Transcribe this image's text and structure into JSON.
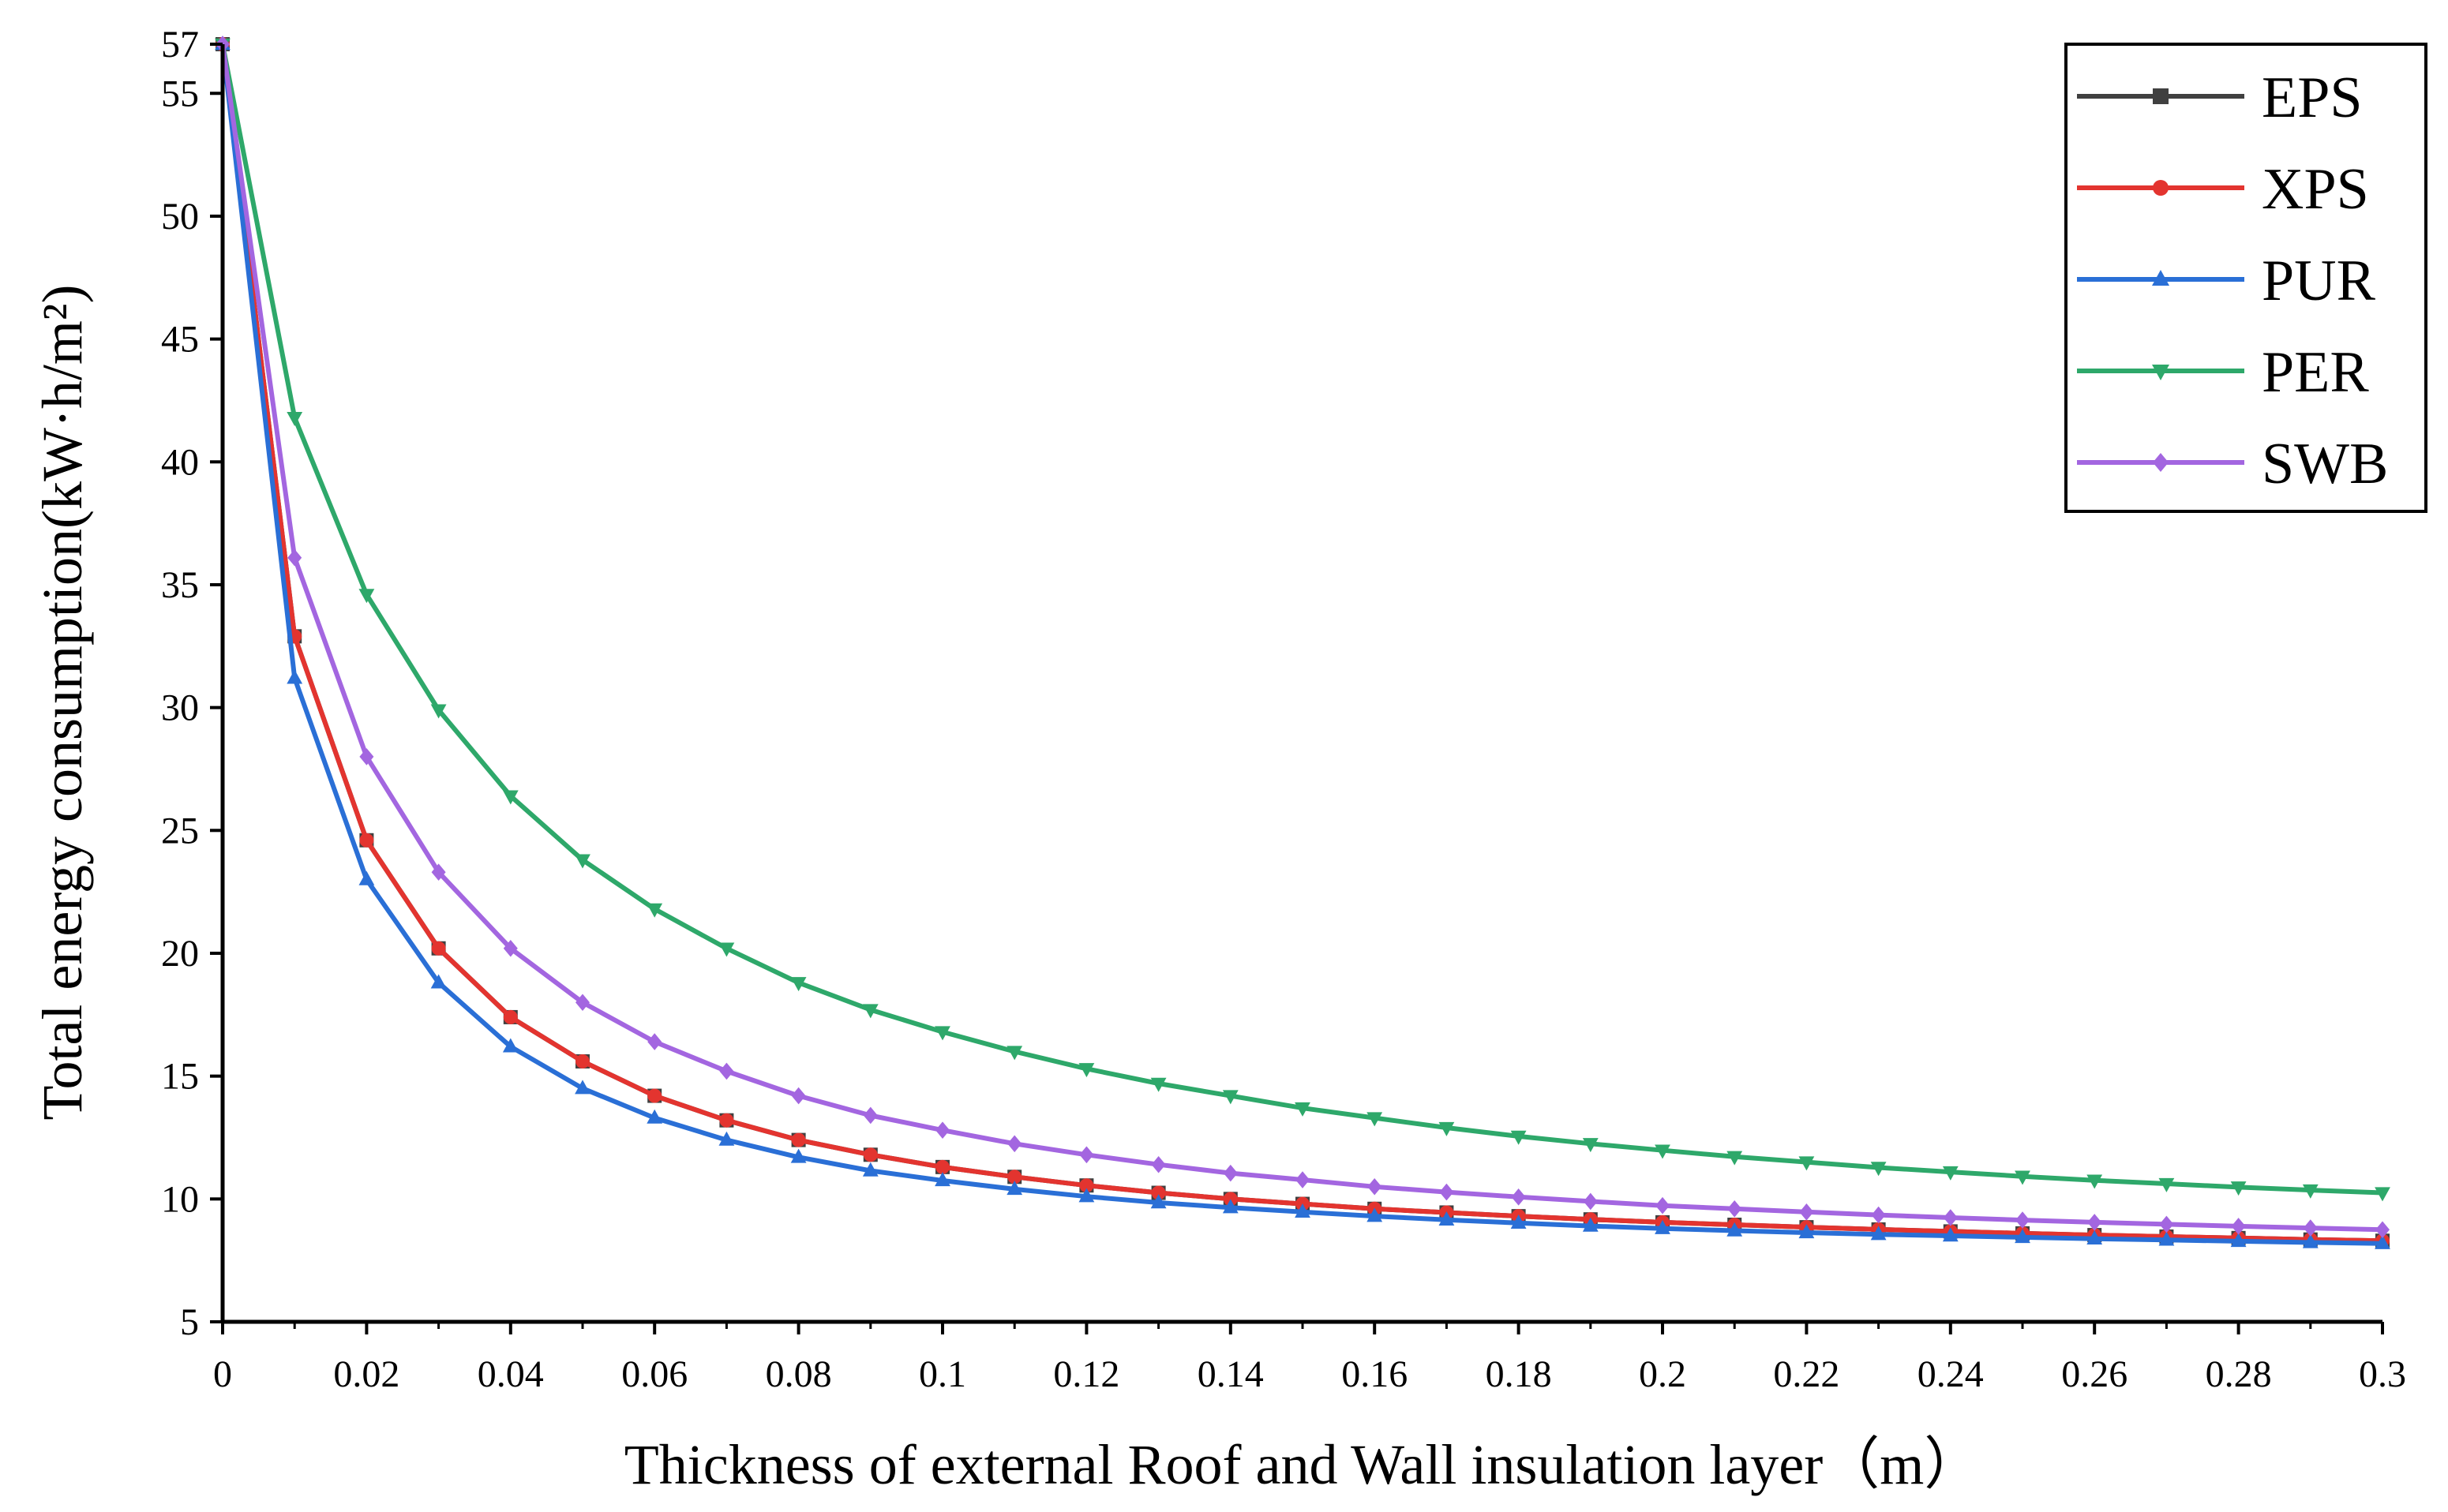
{
  "chart_data": {
    "type": "line",
    "title": "",
    "xlabel": "Thickness of external Roof and Wall insulation layer（m）",
    "ylabel": "Total energy consumption(kW·h/m²)",
    "xlim": [
      0,
      0.3
    ],
    "ylim": [
      5,
      57
    ],
    "grid": false,
    "legend_position": "top-right",
    "x_ticks": [
      0,
      0.02,
      0.04,
      0.06,
      0.08,
      0.1,
      0.12,
      0.14,
      0.16,
      0.18,
      0.2,
      0.22,
      0.24,
      0.26,
      0.28,
      0.3
    ],
    "x_tick_labels": [
      "0",
      "0.02",
      "0.04",
      "0.06",
      "0.08",
      "0.1",
      "0.12",
      "0.14",
      "0.16",
      "0.18",
      "0.2",
      "0.22",
      "0.24",
      "0.26",
      "0.28",
      "0.3"
    ],
    "y_ticks": [
      5,
      10,
      15,
      20,
      25,
      30,
      35,
      40,
      45,
      50,
      55,
      57
    ],
    "y_tick_labels": [
      "5",
      "10",
      "15",
      "20",
      "25",
      "30",
      "35",
      "40",
      "45",
      "50",
      "55",
      "57"
    ],
    "x": [
      0,
      0.01,
      0.02,
      0.03,
      0.04,
      0.05,
      0.06,
      0.07,
      0.08,
      0.09,
      0.1,
      0.11,
      0.12,
      0.13,
      0.14,
      0.15,
      0.16,
      0.17,
      0.18,
      0.19,
      0.2,
      0.21,
      0.22,
      0.23,
      0.24,
      0.25,
      0.26,
      0.27,
      0.28,
      0.29,
      0.3
    ],
    "series": [
      {
        "name": "EPS",
        "color": "#404040",
        "marker": "square",
        "values": [
          57.0,
          32.9,
          24.6,
          20.2,
          17.4,
          15.6,
          14.2,
          13.2,
          12.4,
          11.8,
          11.3,
          10.9,
          10.55,
          10.25,
          10.0,
          9.8,
          9.6,
          9.45,
          9.3,
          9.17,
          9.05,
          8.95,
          8.85,
          8.76,
          8.68,
          8.6,
          8.53,
          8.47,
          8.41,
          8.35,
          8.3
        ]
      },
      {
        "name": "XPS",
        "color": "#e3342f",
        "marker": "circle",
        "values": [
          57.0,
          32.9,
          24.6,
          20.2,
          17.4,
          15.6,
          14.2,
          13.2,
          12.4,
          11.8,
          11.3,
          10.9,
          10.55,
          10.25,
          10.0,
          9.8,
          9.6,
          9.45,
          9.3,
          9.17,
          9.05,
          8.95,
          8.85,
          8.76,
          8.68,
          8.6,
          8.53,
          8.47,
          8.41,
          8.35,
          8.3
        ]
      },
      {
        "name": "PUR",
        "color": "#2a6fd6",
        "marker": "triangle-up",
        "values": [
          57.0,
          31.2,
          23.0,
          18.8,
          16.2,
          14.5,
          13.3,
          12.4,
          11.7,
          11.15,
          10.75,
          10.4,
          10.1,
          9.85,
          9.65,
          9.47,
          9.3,
          9.15,
          9.02,
          8.9,
          8.8,
          8.71,
          8.63,
          8.56,
          8.5,
          8.44,
          8.38,
          8.33,
          8.28,
          8.23,
          8.19
        ]
      },
      {
        "name": "PER",
        "color": "#2ea86a",
        "marker": "triangle-down",
        "values": [
          57.0,
          41.8,
          34.6,
          29.9,
          26.4,
          23.8,
          21.8,
          20.2,
          18.8,
          17.7,
          16.8,
          16.0,
          15.3,
          14.7,
          14.2,
          13.7,
          13.3,
          12.9,
          12.55,
          12.25,
          11.98,
          11.72,
          11.5,
          11.28,
          11.1,
          10.92,
          10.76,
          10.62,
          10.48,
          10.36,
          10.25
        ]
      },
      {
        "name": "SWB",
        "color": "#a366e0",
        "marker": "diamond",
        "values": [
          57.0,
          36.1,
          28.0,
          23.3,
          20.2,
          18.0,
          16.4,
          15.2,
          14.2,
          13.4,
          12.8,
          12.25,
          11.8,
          11.4,
          11.05,
          10.78,
          10.5,
          10.28,
          10.08,
          9.9,
          9.73,
          9.6,
          9.47,
          9.35,
          9.24,
          9.14,
          9.05,
          8.97,
          8.89,
          8.82,
          8.75
        ]
      }
    ]
  }
}
